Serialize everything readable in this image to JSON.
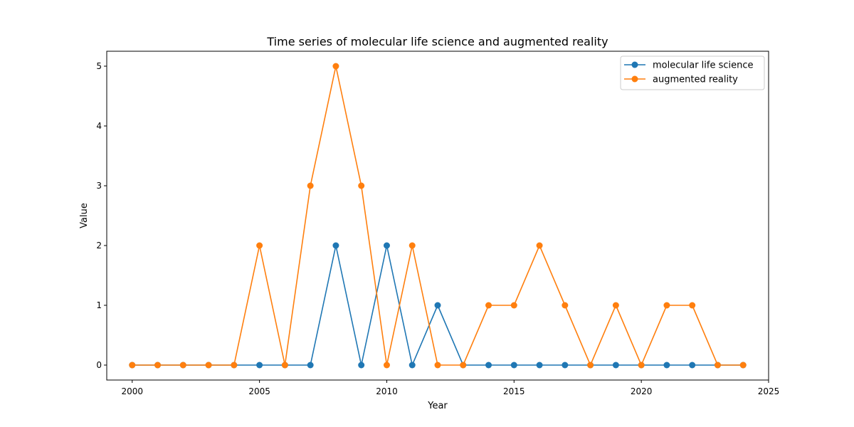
{
  "chart_data": {
    "type": "line",
    "title": "Time series of molecular life science and augmented reality",
    "xlabel": "Year",
    "ylabel": "Value",
    "x": [
      2000,
      2001,
      2002,
      2003,
      2004,
      2005,
      2006,
      2007,
      2008,
      2009,
      2010,
      2011,
      2012,
      2013,
      2014,
      2015,
      2016,
      2017,
      2018,
      2019,
      2020,
      2021,
      2022,
      2023,
      2024
    ],
    "series": [
      {
        "name": "molecular life science",
        "color": "#1f77b4",
        "values": [
          0,
          0,
          0,
          0,
          0,
          0,
          0,
          0,
          2,
          0,
          2,
          0,
          1,
          0,
          0,
          0,
          0,
          0,
          0,
          0,
          0,
          0,
          0,
          0,
          0
        ]
      },
      {
        "name": "augmented reality",
        "color": "#ff7f0e",
        "values": [
          0,
          0,
          0,
          0,
          0,
          2,
          0,
          3,
          5,
          3,
          0,
          2,
          0,
          0,
          1,
          1,
          2,
          1,
          0,
          1,
          0,
          1,
          1,
          0,
          0
        ]
      }
    ],
    "xlim": [
      1999,
      2025
    ],
    "ylim": [
      -0.25,
      5.25
    ],
    "xticks": [
      2000,
      2005,
      2010,
      2015,
      2020,
      2025
    ],
    "yticks": [
      0,
      1,
      2,
      3,
      4,
      5
    ],
    "xtick_labels": [
      "2000",
      "2005",
      "2010",
      "2015",
      "2020",
      "2025"
    ],
    "ytick_labels": [
      "0",
      "1",
      "2",
      "3",
      "4",
      "5"
    ],
    "grid": false,
    "legend_position": "upper right"
  }
}
